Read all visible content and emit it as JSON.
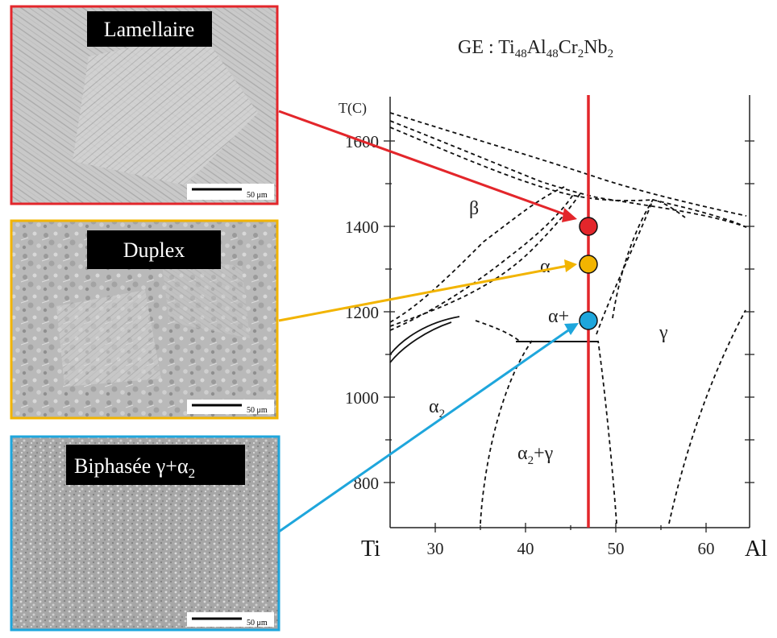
{
  "title": {
    "prefix": "GE : Ti",
    "sub1": "48",
    "mid1": "Al",
    "sub2": "48",
    "mid2": "Cr",
    "sub3": "2",
    "mid3": "Nb",
    "sub4": "2"
  },
  "micrographs": [
    {
      "label": "Lamellaire",
      "border_color": "#e3262b",
      "scale_text": "50 μm"
    },
    {
      "label": "Duplex",
      "border_color": "#f2b400",
      "scale_text": "50 μm"
    },
    {
      "label_main": "Biphasée γ+α",
      "label_sub": "2",
      "border_color": "#1ea6dc",
      "scale_text": "50 μm"
    }
  ],
  "diagram": {
    "y_axis_label": "T(C)",
    "y_ticks": [
      "1600",
      "1400",
      "1200",
      "1000",
      "800"
    ],
    "x_left_label": "Ti",
    "x_right_label": "Al",
    "x_ticks": [
      "30",
      "40",
      "50",
      "60"
    ],
    "phases": {
      "beta": "β",
      "alpha": "α",
      "alpha_gamma_main": "α+",
      "gamma": "γ",
      "alpha2_main": "α",
      "alpha2_sub": "2",
      "alpha2_gamma_main": "α",
      "alpha2_gamma_sub": "2",
      "alpha2_gamma_tail": "+γ"
    },
    "composition_line_color": "#e3262b",
    "points": [
      {
        "name": "lamellar-point",
        "color": "#e3262b"
      },
      {
        "name": "duplex-point",
        "color": "#f2b400"
      },
      {
        "name": "biphase-point",
        "color": "#1ea6dc"
      }
    ]
  }
}
